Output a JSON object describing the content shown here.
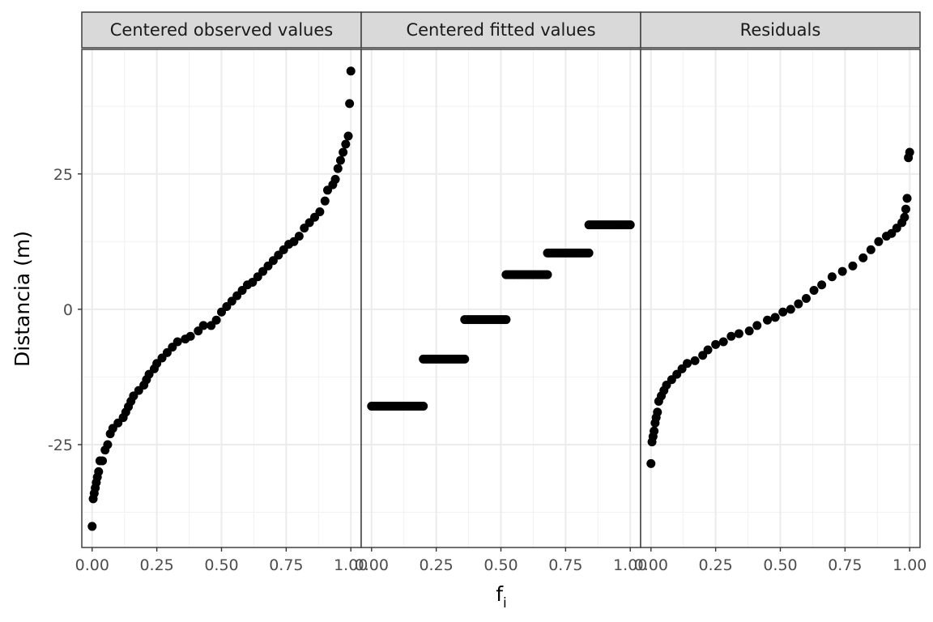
{
  "chart_data": {
    "type": "scatter",
    "xlabel": "f",
    "xlabel_subscript": "i",
    "ylabel": "Distancia (m)",
    "ylim": [
      -44,
      48
    ],
    "xlim": [
      -0.04,
      1.04
    ],
    "y_ticks": [
      -25,
      0,
      25
    ],
    "y_tick_labels": [
      "-25",
      "0",
      "25"
    ],
    "x_ticks": [
      0,
      0.25,
      0.5,
      0.75,
      1.0
    ],
    "x_tick_labels": [
      "0.00",
      "0.25",
      "0.50",
      "0.75",
      "1.00"
    ],
    "grid": true,
    "point_color": "#000000",
    "strip_fill": "#d9d9d9",
    "panels": [
      {
        "name": "Centered observed values",
        "points": [
          [
            0.0,
            -40.1
          ],
          [
            0.004,
            -35
          ],
          [
            0.008,
            -34
          ],
          [
            0.012,
            -33
          ],
          [
            0.016,
            -32
          ],
          [
            0.02,
            -31
          ],
          [
            0.025,
            -30
          ],
          [
            0.03,
            -28
          ],
          [
            0.04,
            -28
          ],
          [
            0.05,
            -26
          ],
          [
            0.06,
            -25
          ],
          [
            0.07,
            -23
          ],
          [
            0.08,
            -22
          ],
          [
            0.1,
            -21
          ],
          [
            0.12,
            -20
          ],
          [
            0.13,
            -19
          ],
          [
            0.14,
            -18
          ],
          [
            0.15,
            -17
          ],
          [
            0.16,
            -16
          ],
          [
            0.18,
            -15
          ],
          [
            0.2,
            -14
          ],
          [
            0.21,
            -13
          ],
          [
            0.22,
            -12
          ],
          [
            0.24,
            -11
          ],
          [
            0.25,
            -10
          ],
          [
            0.27,
            -9
          ],
          [
            0.29,
            -8
          ],
          [
            0.31,
            -7
          ],
          [
            0.33,
            -6
          ],
          [
            0.36,
            -5.5
          ],
          [
            0.38,
            -5
          ],
          [
            0.41,
            -4
          ],
          [
            0.43,
            -3
          ],
          [
            0.46,
            -3
          ],
          [
            0.48,
            -2
          ],
          [
            0.5,
            -0.5
          ],
          [
            0.52,
            0.5
          ],
          [
            0.54,
            1.5
          ],
          [
            0.56,
            2.5
          ],
          [
            0.58,
            3.5
          ],
          [
            0.6,
            4.5
          ],
          [
            0.62,
            5
          ],
          [
            0.64,
            6
          ],
          [
            0.66,
            7
          ],
          [
            0.68,
            8
          ],
          [
            0.7,
            9
          ],
          [
            0.72,
            10
          ],
          [
            0.74,
            11
          ],
          [
            0.76,
            12
          ],
          [
            0.78,
            12.5
          ],
          [
            0.8,
            13.5
          ],
          [
            0.82,
            15
          ],
          [
            0.84,
            16
          ],
          [
            0.86,
            17
          ],
          [
            0.88,
            18
          ],
          [
            0.9,
            20
          ],
          [
            0.91,
            22
          ],
          [
            0.93,
            23
          ],
          [
            0.94,
            24
          ],
          [
            0.95,
            26
          ],
          [
            0.96,
            27.5
          ],
          [
            0.97,
            29
          ],
          [
            0.98,
            30.5
          ],
          [
            0.99,
            32
          ],
          [
            0.995,
            38
          ],
          [
            1.0,
            44
          ]
        ]
      },
      {
        "name": "Centered fitted values",
        "segments": [
          {
            "x_start": 0.0,
            "x_end": 0.2,
            "y": -17.9
          },
          {
            "x_start": 0.2,
            "x_end": 0.36,
            "y": -9.2
          },
          {
            "x_start": 0.36,
            "x_end": 0.52,
            "y": -1.9
          },
          {
            "x_start": 0.52,
            "x_end": 0.68,
            "y": 6.4
          },
          {
            "x_start": 0.68,
            "x_end": 0.84,
            "y": 10.4
          },
          {
            "x_start": 0.84,
            "x_end": 1.0,
            "y": 15.6
          }
        ]
      },
      {
        "name": "Residuals",
        "points": [
          [
            0.0,
            -28.5
          ],
          [
            0.004,
            -24.5
          ],
          [
            0.008,
            -23.5
          ],
          [
            0.012,
            -22.5
          ],
          [
            0.016,
            -21
          ],
          [
            0.02,
            -20
          ],
          [
            0.025,
            -19
          ],
          [
            0.03,
            -17
          ],
          [
            0.04,
            -16
          ],
          [
            0.05,
            -15
          ],
          [
            0.06,
            -14
          ],
          [
            0.08,
            -13
          ],
          [
            0.1,
            -12
          ],
          [
            0.12,
            -11
          ],
          [
            0.14,
            -10
          ],
          [
            0.17,
            -9.5
          ],
          [
            0.2,
            -8.5
          ],
          [
            0.22,
            -7.5
          ],
          [
            0.25,
            -6.5
          ],
          [
            0.28,
            -6
          ],
          [
            0.31,
            -5
          ],
          [
            0.34,
            -4.5
          ],
          [
            0.38,
            -4
          ],
          [
            0.41,
            -3
          ],
          [
            0.45,
            -2
          ],
          [
            0.48,
            -1.5
          ],
          [
            0.51,
            -0.5
          ],
          [
            0.54,
            0
          ],
          [
            0.57,
            1
          ],
          [
            0.6,
            2
          ],
          [
            0.63,
            3.5
          ],
          [
            0.66,
            4.5
          ],
          [
            0.7,
            6
          ],
          [
            0.74,
            7
          ],
          [
            0.78,
            8
          ],
          [
            0.82,
            9.5
          ],
          [
            0.85,
            11
          ],
          [
            0.88,
            12.5
          ],
          [
            0.91,
            13.5
          ],
          [
            0.93,
            14
          ],
          [
            0.95,
            15
          ],
          [
            0.97,
            16
          ],
          [
            0.98,
            17
          ],
          [
            0.985,
            18.5
          ],
          [
            0.99,
            20.5
          ],
          [
            0.995,
            28
          ],
          [
            1.0,
            29
          ]
        ]
      }
    ]
  }
}
